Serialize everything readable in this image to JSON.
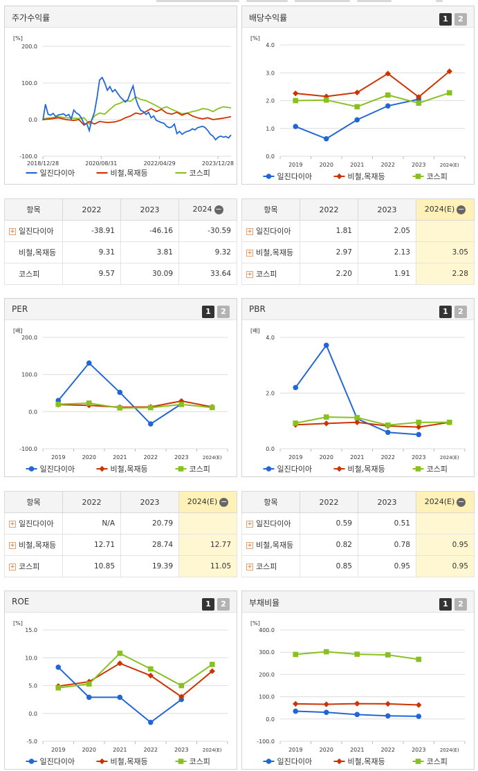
{
  "colors": {
    "s1": "#2166d6",
    "s2": "#cc3300",
    "s3": "#88c020"
  },
  "legend_names": [
    "일진다이아",
    "비철,목재등",
    "코스피"
  ],
  "panels": {
    "stock": {
      "title": "주가수익률"
    },
    "div": {
      "title": "배당수익률"
    },
    "per": {
      "title": "PER"
    },
    "pbr": {
      "title": "PBR"
    },
    "roe": {
      "title": "ROE"
    },
    "debt": {
      "title": "부채비율"
    }
  },
  "pager": {
    "p1": "1",
    "p2": "2"
  },
  "chart_data": [
    {
      "id": "stock",
      "type": "line",
      "unit": "[%]",
      "yticks": [
        "200.0",
        "100.0",
        "0.0",
        "-100.0"
      ],
      "ylim": [
        -100,
        200
      ],
      "xtick_labels": [
        "2018/12/28",
        "2020/08/31",
        "2022/04/29",
        "2023/12/28"
      ],
      "xtick_pos": [
        0,
        0.31,
        0.62,
        0.93
      ],
      "series_pts": [
        [
          0,
          -2
        ],
        [
          1,
          42
        ],
        [
          2,
          15
        ],
        [
          3,
          12
        ],
        [
          4,
          17
        ],
        [
          5,
          8
        ],
        [
          6,
          13
        ],
        [
          7,
          14
        ],
        [
          8,
          16
        ],
        [
          9,
          10
        ],
        [
          10,
          14
        ],
        [
          11,
          2
        ],
        [
          12,
          26
        ],
        [
          13,
          18
        ],
        [
          14,
          14
        ],
        [
          15,
          4
        ],
        [
          16,
          -12
        ],
        [
          17,
          -10
        ],
        [
          18,
          -30
        ],
        [
          19,
          0
        ],
        [
          20,
          20
        ],
        [
          21,
          60
        ],
        [
          22,
          108
        ],
        [
          23,
          115
        ],
        [
          24,
          100
        ],
        [
          25,
          80
        ],
        [
          26,
          90
        ],
        [
          27,
          76
        ],
        [
          28,
          82
        ],
        [
          29,
          72
        ],
        [
          30,
          62
        ],
        [
          31,
          55
        ],
        [
          32,
          48
        ],
        [
          33,
          55
        ],
        [
          34,
          75
        ],
        [
          35,
          92
        ],
        [
          36,
          58
        ],
        [
          37,
          38
        ],
        [
          38,
          25
        ],
        [
          39,
          22
        ],
        [
          40,
          14
        ],
        [
          41,
          20
        ],
        [
          42,
          5
        ],
        [
          43,
          10
        ],
        [
          44,
          -2
        ],
        [
          45,
          -5
        ],
        [
          46,
          -8
        ],
        [
          47,
          -10
        ],
        [
          48,
          -18
        ],
        [
          49,
          -22
        ],
        [
          50,
          -20
        ],
        [
          51,
          -12
        ],
        [
          52,
          -38
        ],
        [
          53,
          -32
        ],
        [
          54,
          -40
        ],
        [
          55,
          -35
        ],
        [
          56,
          -32
        ],
        [
          57,
          -30
        ],
        [
          58,
          -25
        ],
        [
          59,
          -28
        ],
        [
          60,
          -22
        ],
        [
          61,
          -20
        ],
        [
          62,
          -18
        ],
        [
          63,
          -22
        ],
        [
          64,
          -30
        ],
        [
          65,
          -40
        ],
        [
          66,
          -45
        ],
        [
          67,
          -55
        ],
        [
          68,
          -48
        ],
        [
          69,
          -45
        ],
        [
          70,
          -48
        ],
        [
          71,
          -46
        ],
        [
          72,
          -50
        ],
        [
          73,
          -42
        ]
      ],
      "series": [
        {
          "name": "일진다이아",
          "color_key": "s1",
          "values_from": "series_pts"
        },
        {
          "name": "비철,목재등",
          "color_key": "s2",
          "values_from": "series2_pts"
        },
        {
          "name": "코스피",
          "color_key": "s3",
          "values_from": "series3_pts"
        }
      ],
      "series2_pts": [
        [
          0,
          0
        ],
        [
          3,
          2
        ],
        [
          6,
          5
        ],
        [
          9,
          0
        ],
        [
          12,
          -2
        ],
        [
          14,
          0
        ],
        [
          16,
          -15
        ],
        [
          18,
          -5
        ],
        [
          20,
          -12
        ],
        [
          22,
          -5
        ],
        [
          25,
          -8
        ],
        [
          28,
          -6
        ],
        [
          30,
          -2
        ],
        [
          32,
          5
        ],
        [
          34,
          10
        ],
        [
          36,
          18
        ],
        [
          38,
          15
        ],
        [
          40,
          22
        ],
        [
          42,
          30
        ],
        [
          44,
          22
        ],
        [
          46,
          28
        ],
        [
          48,
          18
        ],
        [
          50,
          15
        ],
        [
          52,
          20
        ],
        [
          54,
          12
        ],
        [
          56,
          18
        ],
        [
          58,
          10
        ],
        [
          60,
          5
        ],
        [
          62,
          2
        ],
        [
          64,
          5
        ],
        [
          66,
          0
        ],
        [
          68,
          2
        ],
        [
          70,
          4
        ],
        [
          73,
          8
        ]
      ],
      "series3_pts": [
        [
          0,
          2
        ],
        [
          3,
          5
        ],
        [
          6,
          8
        ],
        [
          9,
          5
        ],
        [
          12,
          4
        ],
        [
          14,
          3
        ],
        [
          16,
          5
        ],
        [
          18,
          -12
        ],
        [
          20,
          10
        ],
        [
          22,
          18
        ],
        [
          24,
          15
        ],
        [
          26,
          28
        ],
        [
          28,
          40
        ],
        [
          30,
          45
        ],
        [
          32,
          52
        ],
        [
          34,
          50
        ],
        [
          36,
          62
        ],
        [
          38,
          55
        ],
        [
          40,
          52
        ],
        [
          42,
          45
        ],
        [
          44,
          38
        ],
        [
          46,
          30
        ],
        [
          48,
          35
        ],
        [
          50,
          28
        ],
        [
          52,
          22
        ],
        [
          54,
          16
        ],
        [
          56,
          18
        ],
        [
          58,
          22
        ],
        [
          60,
          25
        ],
        [
          62,
          30
        ],
        [
          64,
          28
        ],
        [
          66,
          22
        ],
        [
          68,
          30
        ],
        [
          70,
          35
        ],
        [
          73,
          32
        ]
      ]
    },
    {
      "id": "div",
      "type": "line",
      "unit": "[%]",
      "yticks": [
        "4.0",
        "3.0",
        "2.0",
        "1.0",
        "0.0"
      ],
      "ylim": [
        0,
        4
      ],
      "categories": [
        "2019",
        "2020",
        "2021",
        "2022",
        "2023",
        "2024(E)"
      ],
      "series": [
        {
          "name": "일진다이아",
          "color_key": "s1",
          "marker": "circle",
          "values": [
            1.07,
            0.63,
            1.31,
            1.81,
            2.05,
            null
          ]
        },
        {
          "name": "비철,목재등",
          "color_key": "s2",
          "marker": "diamond",
          "values": [
            2.26,
            2.15,
            2.29,
            2.97,
            2.13,
            3.05
          ]
        },
        {
          "name": "코스피",
          "color_key": "s3",
          "marker": "square",
          "values": [
            2.0,
            2.02,
            1.78,
            2.2,
            1.91,
            2.28
          ]
        }
      ]
    },
    {
      "id": "per",
      "type": "line",
      "unit": "[배]",
      "yticks": [
        "200.0",
        "100.0",
        "0.0",
        "-100.0"
      ],
      "ylim": [
        -100,
        200
      ],
      "categories": [
        "2019",
        "2020",
        "2021",
        "2022",
        "2023",
        "2024(E)"
      ],
      "series": [
        {
          "name": "일진다이아",
          "color_key": "s1",
          "marker": "circle",
          "values": [
            30,
            131,
            52,
            -33,
            20.79,
            null
          ]
        },
        {
          "name": "비철,목재등",
          "color_key": "s2",
          "marker": "diamond",
          "values": [
            19,
            17,
            12,
            12.71,
            28.74,
            12.77
          ]
        },
        {
          "name": "코스피",
          "color_key": "s3",
          "marker": "square",
          "values": [
            20,
            23,
            10,
            10.85,
            19.39,
            11.05
          ]
        }
      ]
    },
    {
      "id": "pbr",
      "type": "line",
      "unit": "[배]",
      "yticks": [
        "4.0",
        "2.0",
        "0.0"
      ],
      "ylim": [
        0,
        4
      ],
      "categories": [
        "2019",
        "2020",
        "2021",
        "2022",
        "2023",
        "2024(E)"
      ],
      "series": [
        {
          "name": "일진다이아",
          "color_key": "s1",
          "marker": "circle",
          "values": [
            2.2,
            3.72,
            1.08,
            0.59,
            0.51,
            null
          ]
        },
        {
          "name": "비철,목재등",
          "color_key": "s2",
          "marker": "diamond",
          "values": [
            0.86,
            0.91,
            0.95,
            0.82,
            0.78,
            0.95
          ]
        },
        {
          "name": "코스피",
          "color_key": "s3",
          "marker": "square",
          "values": [
            0.92,
            1.14,
            1.12,
            0.85,
            0.95,
            0.95
          ]
        }
      ]
    },
    {
      "id": "roe",
      "type": "line",
      "unit": "[%]",
      "yticks": [
        "15.0",
        "10.0",
        "5.0",
        "0.0",
        "-5.0"
      ],
      "ylim": [
        -5,
        15
      ],
      "categories": [
        "2019",
        "2020",
        "2021",
        "2022",
        "2023",
        "2024(E)"
      ],
      "series": [
        {
          "name": "일진다이아",
          "color_key": "s1",
          "marker": "circle",
          "values": [
            8.3,
            2.9,
            2.9,
            -1.6,
            2.5,
            null
          ]
        },
        {
          "name": "비철,목재등",
          "color_key": "s2",
          "marker": "diamond",
          "values": [
            4.9,
            5.7,
            9.0,
            6.8,
            3.0,
            7.6
          ]
        },
        {
          "name": "코스피",
          "color_key": "s3",
          "marker": "square",
          "values": [
            4.6,
            5.3,
            10.8,
            8.0,
            5.0,
            8.8
          ]
        }
      ]
    },
    {
      "id": "debt",
      "type": "line",
      "unit": "[%]",
      "yticks": [
        "400.0",
        "300.0",
        "200.0",
        "100.0",
        "0.0",
        "-100.0"
      ],
      "ylim": [
        -100,
        400
      ],
      "categories": [
        "2019",
        "2020",
        "2021",
        "2022",
        "2023",
        "2024(E)"
      ],
      "series": [
        {
          "name": "일진다이아",
          "color_key": "s1",
          "marker": "circle",
          "values": [
            35,
            30,
            20,
            14,
            12,
            null
          ]
        },
        {
          "name": "비철,목재등",
          "color_key": "s2",
          "marker": "diamond",
          "values": [
            68,
            66,
            69,
            68,
            63,
            null
          ]
        },
        {
          "name": "코스피",
          "color_key": "s3",
          "marker": "square",
          "values": [
            290,
            302,
            291,
            288,
            268,
            null
          ]
        }
      ]
    }
  ],
  "tables": {
    "stock": {
      "headers": [
        "항목",
        "2022",
        "2023",
        "2024"
      ],
      "minus": "−",
      "rows": [
        {
          "name": "일진다이아",
          "plus": true,
          "v": [
            "-38.91",
            "-46.16",
            "-30.59"
          ]
        },
        {
          "name": "비철,목재등",
          "plus": false,
          "v": [
            "9.31",
            "3.81",
            "9.32"
          ]
        },
        {
          "name": "코스피",
          "plus": false,
          "v": [
            "9.57",
            "30.09",
            "33.64"
          ]
        }
      ]
    },
    "div": {
      "headers": [
        "항목",
        "2022",
        "2023",
        "2024(E)"
      ],
      "minus": "−",
      "rows": [
        {
          "name": "일진다이아",
          "plus": true,
          "v": [
            "1.81",
            "2.05",
            ""
          ]
        },
        {
          "name": "비철,목재등",
          "plus": true,
          "v": [
            "2.97",
            "2.13",
            "3.05"
          ]
        },
        {
          "name": "코스피",
          "plus": true,
          "v": [
            "2.20",
            "1.91",
            "2.28"
          ]
        }
      ]
    },
    "per": {
      "headers": [
        "항목",
        "2022",
        "2023",
        "2024(E)"
      ],
      "minus": "−",
      "rows": [
        {
          "name": "일진다이아",
          "plus": true,
          "v": [
            "N/A",
            "20.79",
            ""
          ]
        },
        {
          "name": "비철,목재등",
          "plus": true,
          "v": [
            "12.71",
            "28.74",
            "12.77"
          ]
        },
        {
          "name": "코스피",
          "plus": true,
          "v": [
            "10.85",
            "19.39",
            "11.05"
          ]
        }
      ]
    },
    "pbr": {
      "headers": [
        "항목",
        "2022",
        "2023",
        "2024(E)"
      ],
      "minus": "−",
      "rows": [
        {
          "name": "일진다이아",
          "plus": true,
          "v": [
            "0.59",
            "0.51",
            ""
          ]
        },
        {
          "name": "비철,목재등",
          "plus": true,
          "v": [
            "0.82",
            "0.78",
            "0.95"
          ]
        },
        {
          "name": "코스피",
          "plus": true,
          "v": [
            "0.85",
            "0.95",
            "0.95"
          ]
        }
      ]
    }
  }
}
